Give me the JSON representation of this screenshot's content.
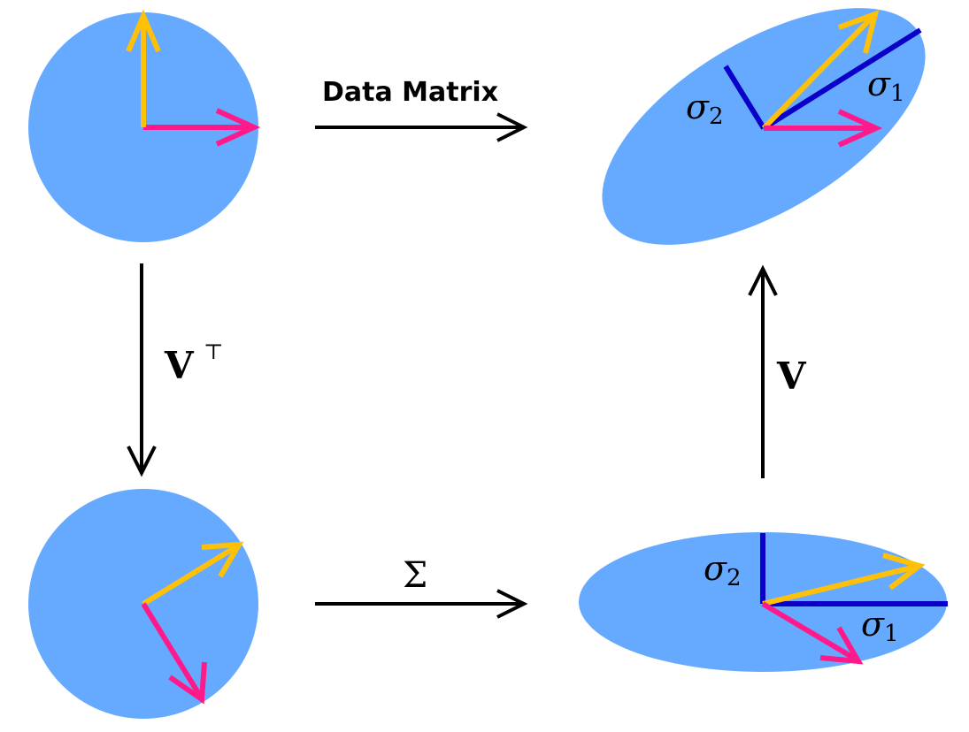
{
  "labels": {
    "data_matrix": "Data Matrix",
    "v_transpose_base": "V",
    "v_transpose_sup": "⊤",
    "v": "V",
    "sigma_capital": "Σ",
    "sigma_symbol": "σ",
    "sub_1": "1",
    "sub_2": "2"
  },
  "colors": {
    "fill": "#66aaff",
    "pink": "#ff1a8c",
    "yellow": "#ffc107",
    "blue": "#0a00c8",
    "black": "#000000"
  }
}
